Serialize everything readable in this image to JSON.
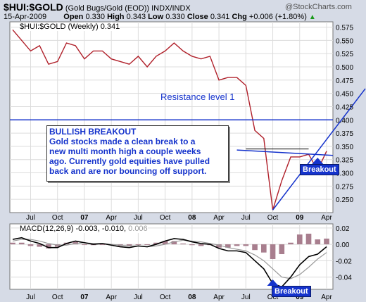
{
  "header": {
    "symbol": "$HUI:$GOLD",
    "name": "(Gold Bugs/Gold (EOD))",
    "exchange": "INDX/INDX",
    "watermark": "@StockCharts.com",
    "date": "15-Apr-2009",
    "open_label": "Open",
    "open": "0.330",
    "high_label": "High",
    "high": "0.343",
    "low_label": "Low",
    "low": "0.330",
    "close_label": "Close",
    "close": "0.341",
    "chg_label": "Chg",
    "chg": "+0.006 (+1.80%)",
    "chg_arrow": "▲"
  },
  "colors": {
    "panel_bg": "#ffffff",
    "frame_bg": "#d6dbe6",
    "price_line": "#b0202a",
    "annotation": "#1533cc",
    "macd_line": "#000000",
    "signal_line": "#999999",
    "histogram": "#a87e8e"
  },
  "annotations": {
    "resistance_label": "Resistance level 1",
    "callout_title": "BULLISH BREAKOUT",
    "callout_lines": [
      "Gold stocks made a clean break to a",
      "new multi month high a couple weeks",
      "ago. Currently gold equities have pulled",
      "back and are nor bouncing off support."
    ],
    "breakout_label_top": "Breakout",
    "breakout_label_bottom": "Breakout"
  },
  "chart_data": [
    {
      "type": "line",
      "legend": "$HUI:$GOLD (Weekly) 0.341",
      "x": [
        "2006-05",
        "2006-06",
        "2006-07",
        "2006-08",
        "2006-09",
        "2006-10",
        "2006-11",
        "2006-12",
        "2007-01",
        "2007-02",
        "2007-03",
        "2007-04",
        "2007-05",
        "2007-06",
        "2007-07",
        "2007-08",
        "2007-09",
        "2007-10",
        "2007-11",
        "2007-12",
        "2008-01",
        "2008-02",
        "2008-03",
        "2008-04",
        "2008-05",
        "2008-06",
        "2008-07",
        "2008-08",
        "2008-09",
        "2008-10",
        "2008-11",
        "2008-12",
        "2009-01",
        "2009-02",
        "2009-03",
        "2009-04"
      ],
      "values": [
        0.57,
        0.55,
        0.53,
        0.54,
        0.505,
        0.51,
        0.545,
        0.54,
        0.515,
        0.53,
        0.53,
        0.515,
        0.51,
        0.505,
        0.52,
        0.5,
        0.52,
        0.53,
        0.545,
        0.53,
        0.52,
        0.515,
        0.52,
        0.475,
        0.48,
        0.48,
        0.465,
        0.38,
        0.365,
        0.23,
        0.285,
        0.33,
        0.33,
        0.335,
        0.305,
        0.341
      ],
      "y_ticks": [
        0.575,
        0.55,
        0.525,
        0.5,
        0.475,
        0.45,
        0.425,
        0.4,
        0.375,
        0.35,
        0.325,
        0.3,
        0.275,
        0.25
      ],
      "ylim": [
        0.225,
        0.585
      ],
      "resistance_level": 0.4,
      "x_ticks": [
        "Jul",
        "Oct",
        "07",
        "Apr",
        "Jul",
        "Oct",
        "08",
        "Apr",
        "Jul",
        "Oct",
        "09",
        "Apr"
      ],
      "grid": true
    },
    {
      "type": "line",
      "legend_prefix": "MACD(12,26,9)",
      "legend_values": [
        "-0.003",
        "-0.010",
        "0.006"
      ],
      "series": [
        {
          "values": [
            0.006,
            0.008,
            0.004,
            0.001,
            -0.004,
            -0.004,
            0.001,
            0.004,
            0.002,
            0.0,
            0.001,
            -0.001,
            -0.003,
            -0.004,
            -0.002,
            -0.003,
            0.0,
            0.004,
            0.007,
            0.006,
            0.003,
            0.001,
            0.0,
            -0.005,
            -0.008,
            -0.008,
            -0.01,
            -0.02,
            -0.03,
            -0.048,
            -0.052,
            -0.04,
            -0.025,
            -0.015,
            -0.012,
            -0.003
          ]
        },
        {
          "values": [
            0.004,
            0.006,
            0.006,
            0.004,
            0.001,
            -0.001,
            -0.001,
            0.001,
            0.002,
            0.001,
            0.001,
            0.0,
            -0.001,
            -0.002,
            -0.002,
            -0.003,
            -0.002,
            0.0,
            0.003,
            0.005,
            0.004,
            0.003,
            0.001,
            -0.001,
            -0.004,
            -0.006,
            -0.008,
            -0.013,
            -0.02,
            -0.03,
            -0.04,
            -0.042,
            -0.037,
            -0.028,
            -0.018,
            -0.01
          ]
        }
      ],
      "y_ticks": [
        0.02,
        0.0,
        -0.02,
        -0.04
      ],
      "ylim": [
        -0.055,
        0.025
      ],
      "x_ticks": [
        "Jul",
        "Oct",
        "07",
        "Apr",
        "Jul",
        "Oct",
        "08",
        "Apr",
        "Jul",
        "Oct",
        "09",
        "Apr"
      ]
    }
  ]
}
